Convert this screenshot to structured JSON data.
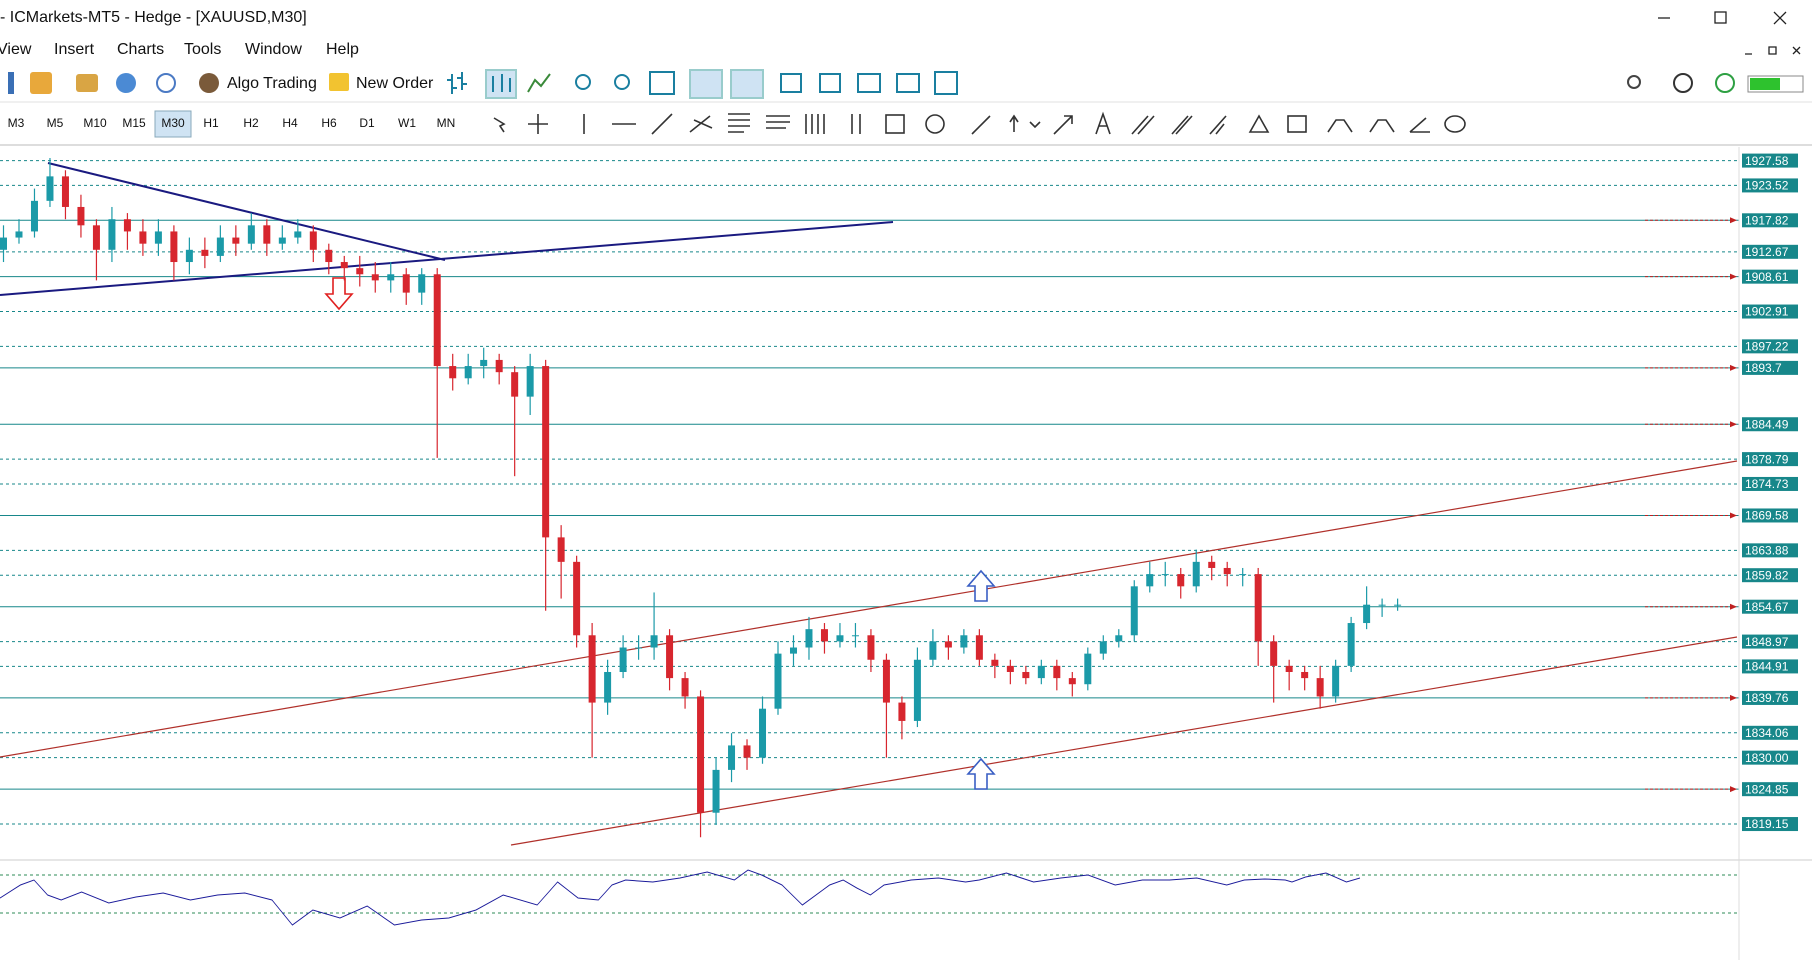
{
  "window": {
    "title": "- ICMarkets-MT5 - Hedge - [XAUUSD,M30]"
  },
  "menu": [
    "View",
    "Insert",
    "Charts",
    "Tools",
    "Window",
    "Help"
  ],
  "toolbar": {
    "algo_trading": "Algo Trading",
    "new_order": "New Order"
  },
  "timeframes": [
    "M3",
    "M5",
    "M10",
    "M15",
    "M30",
    "H1",
    "H2",
    "H4",
    "H6",
    "D1",
    "W1",
    "MN"
  ],
  "chart_data": {
    "type": "candlestick",
    "up_color": "#1b9aa8",
    "down_color": "#d7262e",
    "level_color": "#17878a",
    "ylim": [
      1813.6,
      1929.8
    ],
    "yticks": [
      1927.58,
      1923.52,
      1912.67,
      1902.91,
      1897.22,
      1878.79,
      1874.73,
      1863.88,
      1859.82,
      1848.97,
      1844.91,
      1834.06,
      {
        "value": 1830,
        "label": "1830.00"
      },
      1819.15
    ],
    "alert_levels": [
      1917.82,
      1908.61,
      1893.7,
      1884.49,
      1869.58,
      1854.67,
      1839.76,
      1824.85
    ],
    "open": [
      1913,
      1915,
      1916,
      1921,
      1925,
      1920,
      1917,
      1913,
      1918,
      1916,
      1914,
      1916,
      1911,
      1913,
      1912,
      1915,
      1914,
      1917,
      1914,
      1915,
      1916,
      1913,
      1911,
      1910,
      1909,
      1908,
      1909,
      1906,
      1909,
      1894,
      1892,
      1894,
      1895,
      1893,
      1889,
      1894,
      1866,
      1862,
      1850,
      1839,
      1844,
      1848,
      1848,
      1850,
      1843,
      1840,
      1821,
      1828,
      1832,
      1830,
      1838,
      1847,
      1848,
      1851,
      1849,
      1850,
      1850,
      1846,
      1839,
      1836,
      1846,
      1849,
      1848,
      1850,
      1846,
      1845,
      1844,
      1843,
      1845,
      1843,
      1842,
      1847,
      1849,
      1850,
      1858,
      1860,
      1860,
      1858,
      1862,
      1861,
      1860,
      1860,
      1849,
      1845,
      1844,
      1843,
      1840,
      1845,
      1852,
      1855,
      1855
    ],
    "high": [
      1917,
      1918,
      1923,
      1928,
      1926,
      1922,
      1918,
      1920,
      1919,
      1918,
      1918,
      1917,
      1915,
      1915,
      1917,
      1917,
      1919,
      1918,
      1917,
      1918,
      1917,
      1914,
      1912,
      1912,
      1911,
      1911,
      1910,
      1910,
      1910,
      1896,
      1896,
      1897,
      1896,
      1894,
      1896,
      1895,
      1868,
      1863,
      1852,
      1846,
      1850,
      1850,
      1857,
      1851,
      1844,
      1841,
      1830,
      1834,
      1833,
      1840,
      1849,
      1850,
      1853,
      1852,
      1852,
      1852,
      1851,
      1847,
      1840,
      1848,
      1851,
      1850,
      1851,
      1851,
      1847,
      1846,
      1845,
      1846,
      1846,
      1844,
      1848,
      1850,
      1851,
      1859,
      1862,
      1862,
      1861,
      1864,
      1863,
      1862,
      1861,
      1861,
      1850,
      1846,
      1845,
      1845,
      1846,
      1853,
      1858,
      1856,
      1856
    ],
    "low": [
      1911,
      1914,
      1915,
      1920,
      1918,
      1915,
      1908,
      1911,
      1913,
      1912,
      1912,
      1908,
      1909,
      1910,
      1911,
      1912,
      1913,
      1912,
      1913,
      1914,
      1911,
      1909,
      1908,
      1907,
      1906,
      1906,
      1904,
      1904,
      1879,
      1890,
      1891,
      1892,
      1891,
      1876,
      1886,
      1854,
      1856,
      1848,
      1830,
      1837,
      1843,
      1846,
      1846,
      1841,
      1838,
      1817,
      1819,
      1826,
      1828,
      1829,
      1837,
      1845,
      1846,
      1847,
      1848,
      1848,
      1844,
      1830,
      1833,
      1835,
      1845,
      1846,
      1847,
      1845,
      1843,
      1842,
      1842,
      1842,
      1841,
      1840,
      1841,
      1846,
      1848,
      1849,
      1857,
      1858,
      1856,
      1857,
      1859,
      1858,
      1858,
      1845,
      1839,
      1841,
      1841,
      1838,
      1839,
      1844,
      1851,
      1853,
      1854
    ],
    "close": [
      1915,
      1916,
      1921,
      1925,
      1920,
      1917,
      1913,
      1918,
      1916,
      1914,
      1916,
      1911,
      1913,
      1912,
      1915,
      1914,
      1917,
      1914,
      1915,
      1916,
      1913,
      1911,
      1910,
      1909,
      1908,
      1909,
      1906,
      1909,
      1894,
      1892,
      1894,
      1895,
      1893,
      1889,
      1894,
      1866,
      1862,
      1850,
      1839,
      1844,
      1848,
      1848,
      1850,
      1843,
      1840,
      1821,
      1828,
      1832,
      1830,
      1838,
      1847,
      1848,
      1851,
      1849,
      1850,
      1850,
      1846,
      1839,
      1836,
      1846,
      1849,
      1848,
      1850,
      1846,
      1845,
      1844,
      1843,
      1845,
      1843,
      1842,
      1847,
      1849,
      1850,
      1858,
      1860,
      1860,
      1858,
      1862,
      1861,
      1860,
      1860,
      1849,
      1845,
      1844,
      1843,
      1840,
      1845,
      1852,
      1855,
      1855,
      1855
    ]
  }
}
